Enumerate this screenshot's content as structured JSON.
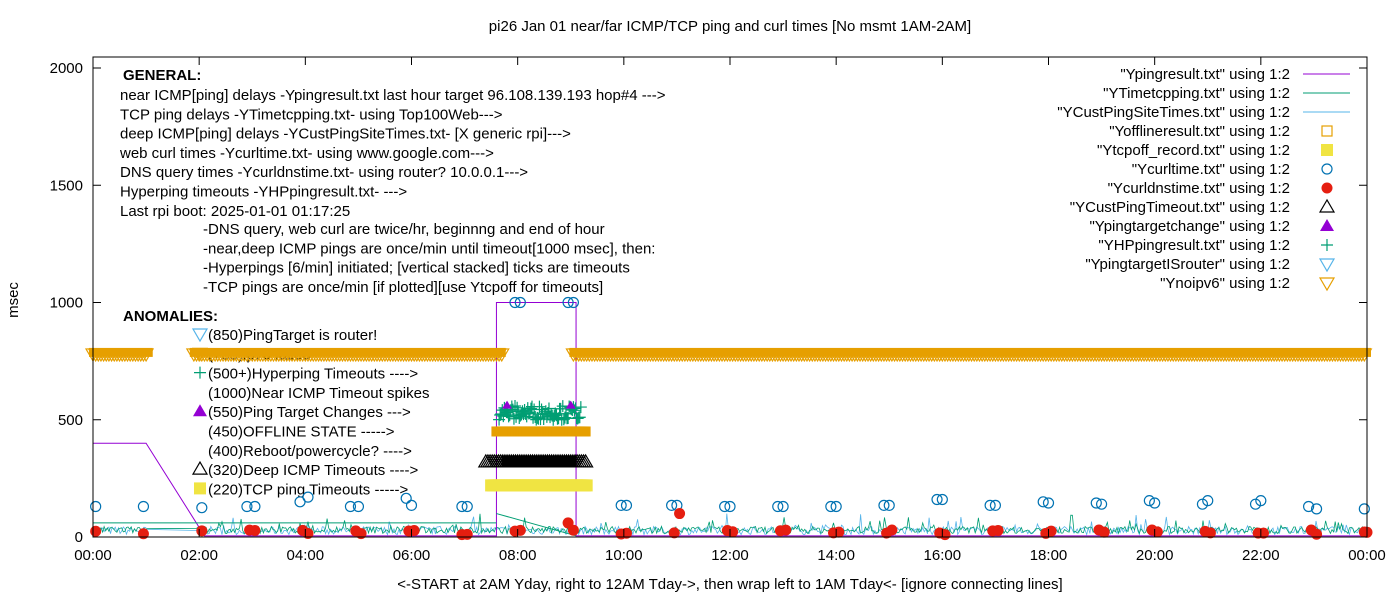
{
  "chart_data": {
    "type": "scatter",
    "title": "pi26 Jan 01  near/far ICMP/TCP ping and curl times [No msmt 1AM-2AM]",
    "xlabel": "<-START at 2AM Yday, right to 12AM Tday->, then wrap left to 1AM Tday<- [ignore connecting lines]",
    "ylabel": "msec",
    "ylim": [
      0,
      2000
    ],
    "xlim_hours": [
      0,
      24
    ],
    "yticks": [
      0,
      500,
      1000,
      1500,
      2000
    ],
    "xticks": [
      "00:00",
      "02:00",
      "04:00",
      "06:00",
      "08:00",
      "10:00",
      "12:00",
      "14:00",
      "16:00",
      "18:00",
      "20:00",
      "22:00",
      "00:00"
    ],
    "grid": false,
    "legend_position": "top-right",
    "legend": [
      {
        "label": "\"Ypingresult.txt\" using 1:2",
        "style": "line",
        "color": "#9400d3"
      },
      {
        "label": "\"YTimetcpping.txt\" using 1:2",
        "style": "line",
        "color": "#009e73"
      },
      {
        "label": "\"YCustPingSiteTimes.txt\" using 1:2",
        "style": "line",
        "color": "#56b4e9"
      },
      {
        "label": "\"Yofflineresult.txt\" using 1:2",
        "style": "open-square",
        "color": "#e69f00"
      },
      {
        "label": "\"Ytcpoff_record.txt\" using 1:2",
        "style": "filled-square",
        "color": "#f0e442"
      },
      {
        "label": "\"Ycurltime.txt\" using 1:2",
        "style": "open-circle",
        "color": "#0072b2"
      },
      {
        "label": "\"Ycurldnstime.txt\" using 1:2",
        "style": "filled-circle",
        "color": "#e51e10"
      },
      {
        "label": "\"YCustPingTimeout.txt\" using 1:2",
        "style": "open-triangle",
        "color": "#000000"
      },
      {
        "label": "\"Ypingtargetchange\" using 1:2",
        "style": "filled-triangle",
        "color": "#9400d3"
      },
      {
        "label": "\"YHPpingresult.txt\" using 1:2",
        "style": "plus",
        "color": "#009e73"
      },
      {
        "label": "\"YpingtargetISrouter\" using 1:2",
        "style": "open-down-triangle",
        "color": "#56b4e9"
      },
      {
        "label": "\"Ynoipv6\" using 1:2",
        "style": "open-down-triangle",
        "color": "#e69f00"
      }
    ],
    "curl_times": [
      [
        0.05,
        130
      ],
      [
        0.95,
        130
      ],
      [
        2.05,
        125
      ],
      [
        2.9,
        130
      ],
      [
        3.05,
        130
      ],
      [
        3.9,
        150
      ],
      [
        4.05,
        170
      ],
      [
        4.85,
        130
      ],
      [
        5.0,
        130
      ],
      [
        5.9,
        165
      ],
      [
        6.0,
        135
      ],
      [
        6.95,
        130
      ],
      [
        7.05,
        130
      ],
      [
        7.95,
        1000
      ],
      [
        8.05,
        1000
      ],
      [
        8.95,
        1000
      ],
      [
        9.05,
        1000
      ],
      [
        9.95,
        135
      ],
      [
        10.05,
        135
      ],
      [
        10.9,
        135
      ],
      [
        11.0,
        135
      ],
      [
        11.9,
        130
      ],
      [
        12.0,
        130
      ],
      [
        12.9,
        130
      ],
      [
        13.0,
        130
      ],
      [
        13.9,
        130
      ],
      [
        14.0,
        130
      ],
      [
        14.9,
        135
      ],
      [
        15.0,
        135
      ],
      [
        15.9,
        160
      ],
      [
        16.0,
        160
      ],
      [
        16.9,
        135
      ],
      [
        17.0,
        135
      ],
      [
        17.9,
        150
      ],
      [
        18.0,
        145
      ],
      [
        18.9,
        145
      ],
      [
        19.0,
        140
      ],
      [
        19.9,
        155
      ],
      [
        20.0,
        145
      ],
      [
        20.9,
        140
      ],
      [
        21.0,
        155
      ],
      [
        21.9,
        140
      ],
      [
        22.0,
        155
      ],
      [
        22.9,
        130
      ],
      [
        23.05,
        120
      ],
      [
        23.95,
        120
      ]
    ],
    "offline_spans_hours": [
      [
        0,
        1.05
      ],
      [
        1.9,
        7.7
      ],
      [
        9.05,
        24
      ]
    ],
    "offline_level": 785,
    "tcp_timeout_span": [
      7.5,
      9.3
    ],
    "deep_timeout_span": [
      7.4,
      9.3
    ],
    "offline_state_span": [
      7.6,
      9.3
    ],
    "tcp_high_span": [
      7.65,
      9.2
    ]
  },
  "annotations": {
    "general_title": "GENERAL:",
    "general_lines": [
      "near ICMP[ping] delays -Ypingresult.txt last hour target 96.108.139.193 hop#4 --->",
      "TCP ping delays -YTimetcpping.txt- using Top100Web--->",
      "deep ICMP[ping] delays -YCustPingSiteTimes.txt- [X generic rpi]--->",
      "web curl times -Ycurltime.txt- using www.google.com--->",
      "DNS query times -Ycurldnstime.txt- using router? 10.0.0.1--->",
      "Hyperping timeouts -YHPpingresult.txt- --->",
      "Last rpi boot: 2025-01-01 01:17:25"
    ],
    "notes": [
      "-DNS query, web curl are twice/hr, beginnng and end of hour",
      "-near,deep ICMP pings are once/min until timeout[1000 msec], then:",
      "  -Hyperpings [6/min] initiated; [vertical stacked] ticks are timeouts",
      "-TCP pings are once/min [if plotted][use Ytcpoff for timeouts]"
    ],
    "anomalies_title": "ANOMALIES:",
    "anomalies": [
      {
        "text": "(850)PingTarget is router!",
        "marker": "open-down-triangle",
        "color": "#56b4e9"
      },
      {
        "text": "(785)ipv6 failed",
        "marker": "open-down-triangle",
        "color": "#e69f00"
      },
      {
        "text": "(500+)Hyperping Timeouts ---->",
        "marker": "plus",
        "color": "#009e73"
      },
      {
        "text": "(1000)Near ICMP Timeout spikes",
        "marker": "none",
        "color": ""
      },
      {
        "text": "(550)Ping Target Changes --->",
        "marker": "filled-triangle",
        "color": "#9400d3"
      },
      {
        "text": "(450)OFFLINE STATE ----->",
        "marker": "none",
        "color": ""
      },
      {
        "text": "(400)Reboot/powercycle? ---->",
        "marker": "none",
        "color": ""
      },
      {
        "text": "(320)Deep ICMP Timeouts ---->",
        "marker": "open-triangle",
        "color": "#000000"
      },
      {
        "text": "(220)TCP ping Timeouts ----->",
        "marker": "filled-square",
        "color": "#f0e442"
      }
    ]
  }
}
